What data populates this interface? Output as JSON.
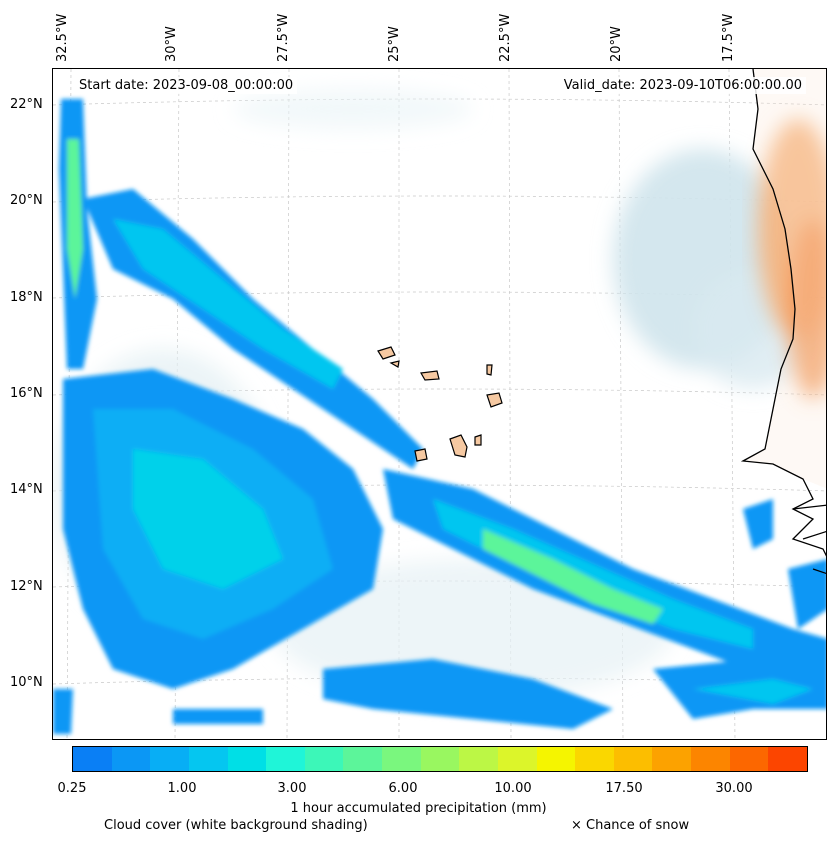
{
  "map": {
    "start_date": "Start date: 2023-09-08_00:00:00",
    "valid_date": "Valid_date: 2023-09-10T06:00:00.00",
    "lon_ticks": [
      "32.5°W",
      "30°W",
      "27.5°W",
      "25°W",
      "22.5°W",
      "20°W",
      "17.5°W"
    ],
    "lat_ticks": [
      "22°N",
      "20°N",
      "18°N",
      "16°N",
      "14°N",
      "12°N",
      "10°N"
    ],
    "lon_range": [
      -33,
      -15.7
    ],
    "lat_range": [
      8.9,
      22.8
    ]
  },
  "legend": {
    "colorbar_label": "1 hour accumulated precipitation (mm)",
    "tick_labels": [
      "0.25",
      "1.00",
      "3.00",
      "6.00",
      "10.00",
      "17.50",
      "30.00"
    ],
    "colors": [
      "#0a7ff5",
      "#0b97f5",
      "#08aef5",
      "#05c6f0",
      "#00dfe6",
      "#1ff5d8",
      "#3cf7b8",
      "#5cf59a",
      "#7af77e",
      "#99f760",
      "#bcf745",
      "#dcf52a",
      "#f5f500",
      "#fad700",
      "#fcbe00",
      "#fca200",
      "#fc8500",
      "#fc6700",
      "#fc4500"
    ],
    "cloud_cover_label": "Cloud cover (white background shading)",
    "snow_label": "× Chance of snow"
  }
}
